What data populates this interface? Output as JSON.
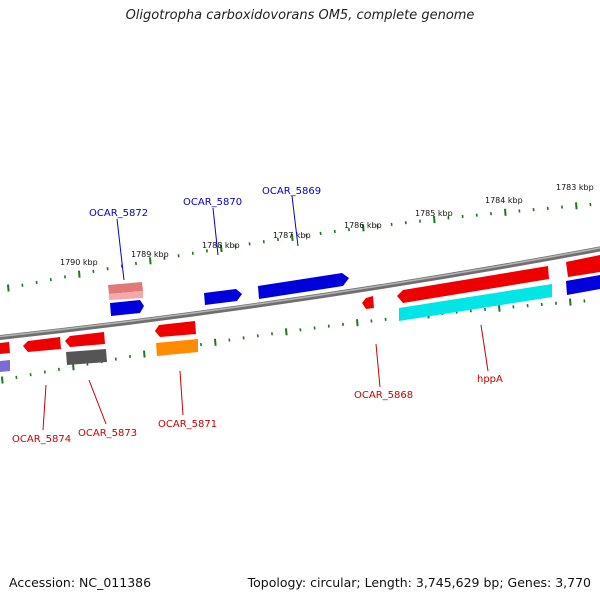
{
  "title": "Oligotropha carboxidovorans OM5, complete genome",
  "accession": "Accession: NC_011386",
  "summary": "Topology: circular; Length: 3,745,629 bp; Genes: 3,770",
  "colors": {
    "backbone": "#8a8a8a",
    "ticks": "#1a7a1a",
    "forward_label": "#0000cc",
    "reverse_label": "#cc0000"
  },
  "scale_labels": [
    "1790 kbp",
    "1789 kbp",
    "1788 kbp",
    "1787 kbp",
    "1786 kbp",
    "1785 kbp",
    "1784 kbp",
    "1783 kbp"
  ],
  "gene_labels": {
    "forward": [
      "OCAR_5872",
      "OCAR_5870",
      "OCAR_5869"
    ],
    "reverse": [
      "OCAR_5874",
      "OCAR_5873",
      "OCAR_5871",
      "OCAR_5868",
      "hppA"
    ]
  }
}
